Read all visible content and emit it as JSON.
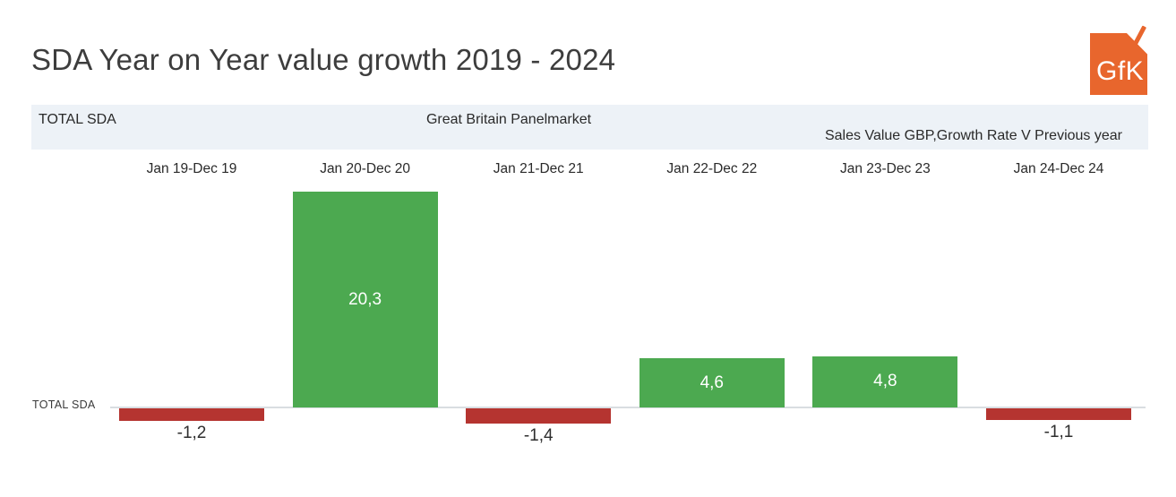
{
  "page": {
    "title": "SDA Year on Year value growth 2019 - 2024"
  },
  "logo": {
    "text": "GfK",
    "color": "#E8662D"
  },
  "header_band": {
    "left": "TOTAL SDA",
    "center": "Great Britain Panelmarket",
    "right": "Sales Value GBP,Growth Rate V Previous year",
    "background": "#EDF2F7"
  },
  "chart_data": {
    "type": "bar",
    "title": "SDA Year on Year value growth 2019 - 2024",
    "row_label": "TOTAL SDA",
    "categories": [
      "Jan 19-Dec 19",
      "Jan 20-Dec 20",
      "Jan 21-Dec 21",
      "Jan 22-Dec 22",
      "Jan 23-Dec 23",
      "Jan 24-Dec 24"
    ],
    "values": [
      -1.2,
      20.3,
      -1.4,
      4.6,
      4.8,
      -1.1
    ],
    "value_labels": [
      "-1,2",
      "20,3",
      "-1,4",
      "4,6",
      "4,8",
      "-1,1"
    ],
    "positive_color": "#4CA950",
    "negative_color": "#B53430",
    "baseline_value": 0,
    "ylim": [
      -2,
      21
    ],
    "grid": false,
    "legend": false,
    "value_label_placement": "inside-positive, below-negative"
  }
}
